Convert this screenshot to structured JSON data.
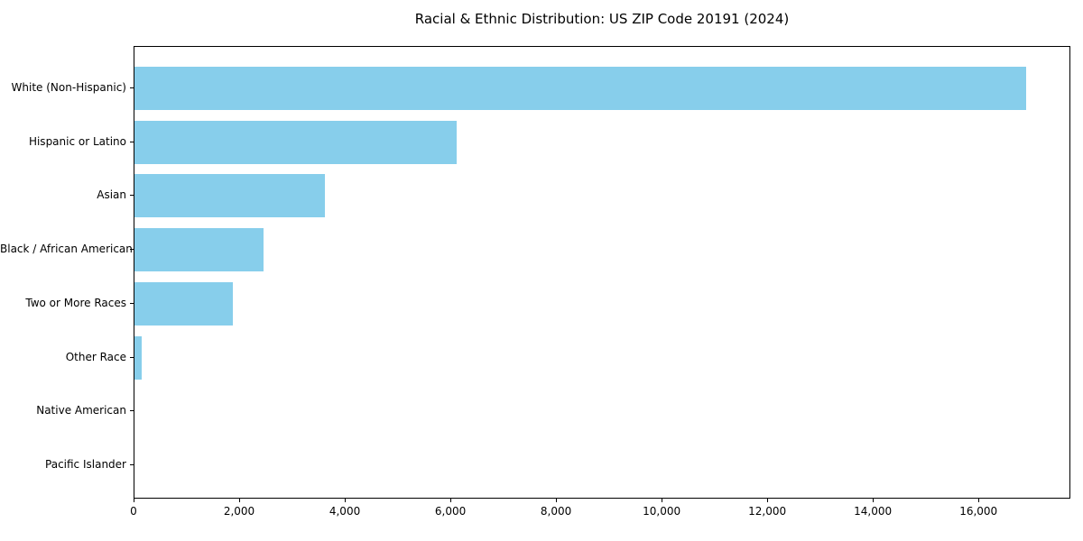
{
  "chart_data": {
    "type": "bar",
    "orientation": "horizontal",
    "title": "Racial & Ethnic Distribution: US ZIP Code 20191 (2024)",
    "categories": [
      "White (Non-Hispanic)",
      "Hispanic or Latino",
      "Asian",
      "Black / African American",
      "Two or More Races",
      "Other Race",
      "Native American",
      "Pacific Islander"
    ],
    "values": [
      16880,
      6100,
      3600,
      2450,
      1860,
      140,
      0,
      0
    ],
    "xlabel": "",
    "ylabel": "",
    "xlim": [
      0,
      17740
    ],
    "x_ticks": [
      0,
      2000,
      4000,
      6000,
      8000,
      10000,
      12000,
      14000,
      16000
    ],
    "x_tick_labels": [
      "0",
      "2,000",
      "4,000",
      "6,000",
      "8,000",
      "10,000",
      "12,000",
      "14,000",
      "16,000"
    ],
    "bar_color": "#87CEEB",
    "axis_color": "#000000",
    "text_color": "#000000",
    "background_color": "#ffffff",
    "grid": false,
    "legend": null
  }
}
